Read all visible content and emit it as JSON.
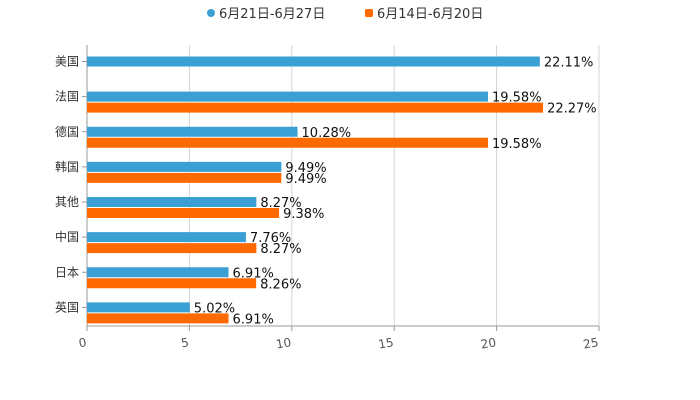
{
  "chart_data": {
    "type": "bar",
    "orientation": "horizontal",
    "title": "",
    "xlabel": "",
    "ylabel": "",
    "xlim": [
      0,
      25
    ],
    "x_ticks": [
      0,
      5,
      10,
      15,
      20,
      25
    ],
    "grid": true,
    "legend_position": "top-center",
    "value_suffix": "%",
    "categories": [
      "美国",
      "法国",
      "德国",
      "韩国",
      "其他",
      "中国",
      "日本",
      "英国"
    ],
    "series": [
      {
        "name": "6月21日-6月27日",
        "color": "#3a9fd3",
        "values": [
          22.11,
          19.58,
          10.28,
          9.49,
          8.27,
          7.76,
          6.91,
          5.02
        ]
      },
      {
        "name": "6月14日-6月20日",
        "color": "#ff6a00",
        "values": [
          null,
          22.27,
          19.58,
          9.49,
          9.38,
          8.27,
          8.26,
          6.91
        ]
      }
    ]
  }
}
